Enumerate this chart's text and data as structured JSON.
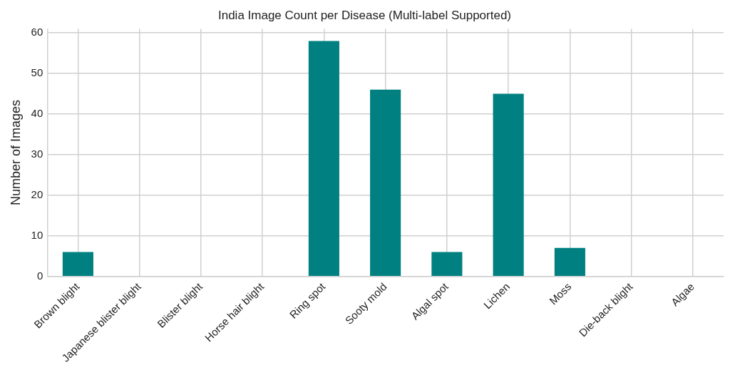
{
  "chart_data": {
    "type": "bar",
    "title": "India Image Count per Disease (Multi-label Supported)",
    "ylabel": "Number of Images",
    "categories": [
      "Brown blight",
      "Japanese blister blight",
      "Blister blight",
      "Horse hair blight",
      "Ring spot",
      "Sooty mold",
      "Algal spot",
      "Lichen",
      "Moss",
      "Die-back blight",
      "Algae"
    ],
    "values": [
      6,
      0,
      0,
      0,
      58,
      46,
      6,
      45,
      7,
      0,
      0
    ],
    "color": "#008080",
    "ylim": [
      0,
      61
    ],
    "yticks": [
      0,
      10,
      20,
      30,
      40,
      50,
      60
    ],
    "grid": true
  }
}
